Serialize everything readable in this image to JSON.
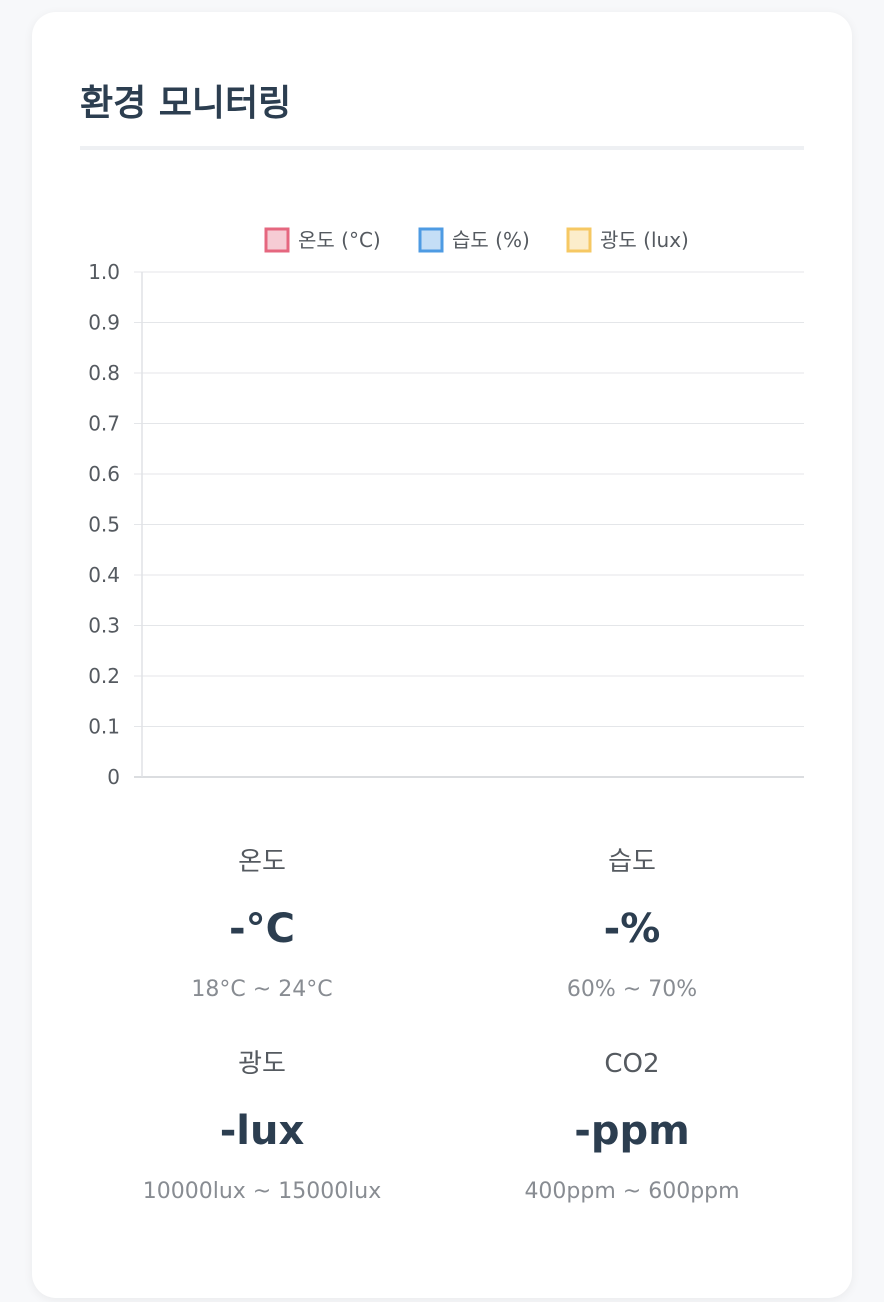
{
  "card": {
    "title": "환경 모니터링"
  },
  "chart_data": {
    "type": "line",
    "series": [
      {
        "name": "온도 (°C)",
        "color": "#e5677f",
        "values": []
      },
      {
        "name": "습도 (%)",
        "color": "#4e9be3",
        "values": []
      },
      {
        "name": "광도 (lux)",
        "color": "#f6c863",
        "values": []
      }
    ],
    "x": [],
    "ylim": [
      0,
      1.0
    ],
    "yticks": [
      "1.0",
      "0.9",
      "0.8",
      "0.7",
      "0.6",
      "0.5",
      "0.4",
      "0.3",
      "0.2",
      "0.1",
      "0"
    ],
    "grid": true,
    "legend": "top-center"
  },
  "stats": [
    {
      "label": "온도",
      "value": "-°C",
      "range": "18°C ~ 24°C"
    },
    {
      "label": "습도",
      "value": "-%",
      "range": "60% ~ 70%"
    },
    {
      "label": "광도",
      "value": "-lux",
      "range": "10000lux ~ 15000lux"
    },
    {
      "label": "CO2",
      "value": "-ppm",
      "range": "400ppm ~ 600ppm"
    }
  ]
}
